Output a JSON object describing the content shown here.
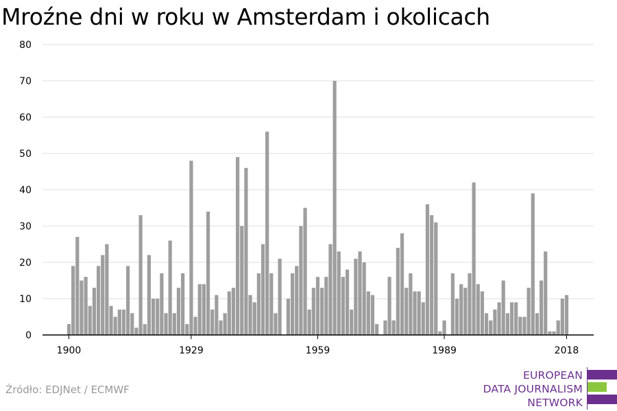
{
  "colors": {
    "bar": "#9e9e9e",
    "grid": "#dddddd",
    "axis": "#000000",
    "logo_purple": "#6b2f8e",
    "logo_green": "#8bc63f"
  },
  "title": "Mroźne dni w roku w Amsterdam i okolicach",
  "source": "Źródło: EDJNet / ECMWF",
  "logo": {
    "lines": [
      "EUROPEAN",
      "DATA JOURNALISM",
      "NETWORK"
    ]
  },
  "chart_data": {
    "type": "bar",
    "title": "Mroźne dni w roku w Amsterdam i okolicach",
    "xlabel": "",
    "ylabel": "",
    "ylim": [
      0,
      80
    ],
    "yticks": [
      0,
      10,
      20,
      30,
      40,
      50,
      60,
      70,
      80
    ],
    "xticks": [
      1900,
      1929,
      1959,
      1989,
      2018
    ],
    "grid": true,
    "legend": "none",
    "x": [
      1900,
      1901,
      1902,
      1903,
      1904,
      1905,
      1906,
      1907,
      1908,
      1909,
      1910,
      1911,
      1912,
      1913,
      1914,
      1915,
      1916,
      1917,
      1918,
      1919,
      1920,
      1921,
      1922,
      1923,
      1924,
      1925,
      1926,
      1927,
      1928,
      1929,
      1930,
      1931,
      1932,
      1933,
      1934,
      1935,
      1936,
      1937,
      1938,
      1939,
      1940,
      1941,
      1942,
      1943,
      1944,
      1945,
      1946,
      1947,
      1948,
      1949,
      1950,
      1951,
      1952,
      1953,
      1954,
      1955,
      1956,
      1957,
      1958,
      1959,
      1960,
      1961,
      1962,
      1963,
      1964,
      1965,
      1966,
      1967,
      1968,
      1969,
      1970,
      1971,
      1972,
      1973,
      1974,
      1975,
      1976,
      1977,
      1978,
      1979,
      1980,
      1981,
      1982,
      1983,
      1984,
      1985,
      1986,
      1987,
      1988,
      1989,
      1990,
      1991,
      1992,
      1993,
      1994,
      1995,
      1996,
      1997,
      1998,
      1999,
      2000,
      2001,
      2002,
      2003,
      2004,
      2005,
      2006,
      2007,
      2008,
      2009,
      2010,
      2011,
      2012,
      2013,
      2014,
      2015,
      2016,
      2017,
      2018
    ],
    "values": [
      3,
      19,
      27,
      15,
      16,
      8,
      13,
      19,
      22,
      25,
      8,
      5,
      7,
      7,
      19,
      6,
      2,
      33,
      3,
      22,
      10,
      10,
      17,
      6,
      26,
      6,
      13,
      17,
      3,
      48,
      5,
      14,
      14,
      34,
      7,
      11,
      4,
      6,
      12,
      13,
      49,
      30,
      46,
      11,
      9,
      17,
      25,
      56,
      17,
      6,
      21,
      0,
      10,
      17,
      19,
      30,
      35,
      7,
      13,
      16,
      13,
      16,
      25,
      70,
      23,
      16,
      18,
      7,
      21,
      23,
      20,
      12,
      11,
      3,
      0,
      4,
      16,
      4,
      24,
      28,
      13,
      17,
      12,
      12,
      9,
      36,
      33,
      31,
      1,
      4,
      0,
      17,
      10,
      14,
      13,
      17,
      42,
      14,
      12,
      6,
      4,
      7,
      9,
      15,
      6,
      9,
      9,
      5,
      5,
      13,
      39,
      6,
      15,
      23,
      1,
      1,
      4,
      10,
      11
    ]
  }
}
